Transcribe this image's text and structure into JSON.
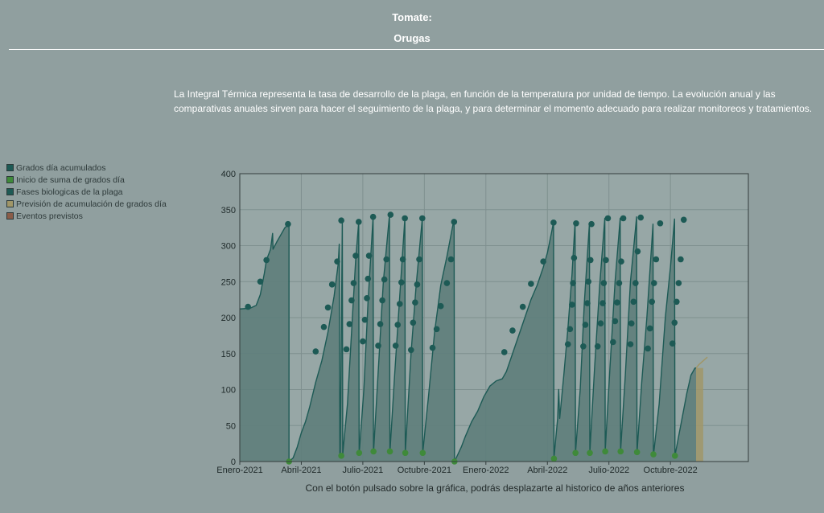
{
  "header": {
    "title": "Tomate:",
    "subtitle": "Orugas"
  },
  "description": "La Integral Térmica representa la tasa de desarrollo de la plaga, en función de la temperatura por unidad de tiempo. La evolución anual y las comparativas anuales sirven para hacer el seguimiento de la plaga, y para determinar el momento adecuado para realizar monitoreos y tratamientos.",
  "legend": [
    {
      "label": "Grados día acumulados",
      "color": "#1d5a55"
    },
    {
      "label": "Inicio de suma de grados día",
      "color": "#3f8a3a"
    },
    {
      "label": "Fases biologicas de la plaga",
      "color": "#1d5a55"
    },
    {
      "label": "Previsión de acumulación de grados día",
      "color": "#a09668"
    },
    {
      "label": "Eventos previstos",
      "color": "#8a5c48"
    }
  ],
  "footer_note": "Con el botón pulsado sobre la gráfica, podrás desplazarte al historico de años anteriores",
  "chart_data": {
    "type": "area",
    "x_unit": "months since Enero-2021",
    "xlim": [
      0,
      24.8
    ],
    "ylim": [
      0,
      400
    ],
    "y_ticks": [
      0,
      50,
      100,
      150,
      200,
      250,
      300,
      350,
      400
    ],
    "x_ticks": [
      {
        "label": "Enero-2021",
        "x": 0
      },
      {
        "label": "Abril-2021",
        "x": 3
      },
      {
        "label": "Julio-2021",
        "x": 6
      },
      {
        "label": "Octubre-2021",
        "x": 9
      },
      {
        "label": "Enero-2022",
        "x": 12
      },
      {
        "label": "Abril-2022",
        "x": 15
      },
      {
        "label": "Julio-2022",
        "x": 18
      },
      {
        "label": "Octubre-2022",
        "x": 21
      }
    ],
    "grid": true,
    "colors": {
      "area": "#5e7e7b",
      "line": "#1d5a55",
      "start": "#3f8a3a",
      "forecast": "#a09668"
    },
    "cumulative_degree_days": [
      [
        0,
        212
      ],
      [
        0.5,
        213
      ],
      [
        0.8,
        217
      ],
      [
        1.0,
        232
      ],
      [
        1.2,
        262
      ],
      [
        1.3,
        280
      ],
      [
        1.5,
        295
      ],
      [
        1.6,
        317
      ],
      [
        1.62,
        295
      ],
      [
        1.8,
        305
      ],
      [
        2.0,
        315
      ],
      [
        2.2,
        325
      ],
      [
        2.4,
        330
      ],
      [
        2.4,
        0
      ],
      [
        2.4,
        0
      ],
      [
        2.6,
        5
      ],
      [
        2.8,
        20
      ],
      [
        3.0,
        40
      ],
      [
        3.2,
        55
      ],
      [
        3.4,
        75
      ],
      [
        3.7,
        110
      ],
      [
        4.0,
        140
      ],
      [
        4.3,
        180
      ],
      [
        4.6,
        230
      ],
      [
        4.8,
        275
      ],
      [
        4.85,
        302
      ],
      [
        4.88,
        10
      ],
      [
        4.9,
        10
      ],
      [
        5.0,
        335
      ],
      [
        5.02,
        10
      ],
      [
        5.02,
        10
      ],
      [
        5.25,
        80
      ],
      [
        5.45,
        180
      ],
      [
        5.65,
        280
      ],
      [
        5.8,
        333
      ],
      [
        5.82,
        10
      ],
      [
        5.82,
        10
      ],
      [
        6.05,
        100
      ],
      [
        6.25,
        220
      ],
      [
        6.5,
        340
      ],
      [
        6.52,
        12
      ],
      [
        6.52,
        12
      ],
      [
        6.8,
        150
      ],
      [
        7.0,
        250
      ],
      [
        7.3,
        343
      ],
      [
        7.32,
        12
      ],
      [
        7.32,
        12
      ],
      [
        7.55,
        120
      ],
      [
        7.8,
        230
      ],
      [
        8.05,
        338
      ],
      [
        8.07,
        12
      ],
      [
        8.07,
        12
      ],
      [
        8.35,
        150
      ],
      [
        8.6,
        245
      ],
      [
        8.9,
        338
      ],
      [
        8.92,
        12
      ],
      [
        8.92,
        12
      ],
      [
        9.2,
        90
      ],
      [
        9.5,
        180
      ],
      [
        9.8,
        245
      ],
      [
        10.1,
        285
      ],
      [
        10.4,
        330
      ],
      [
        10.45,
        333
      ],
      [
        10.47,
        0
      ],
      [
        10.47,
        0
      ],
      [
        10.8,
        20
      ],
      [
        11.0,
        35
      ],
      [
        11.3,
        55
      ],
      [
        11.6,
        70
      ],
      [
        11.9,
        90
      ],
      [
        12.2,
        105
      ],
      [
        12.5,
        112
      ],
      [
        12.8,
        115
      ],
      [
        13.0,
        125
      ],
      [
        13.3,
        150
      ],
      [
        13.6,
        175
      ],
      [
        13.9,
        200
      ],
      [
        14.2,
        225
      ],
      [
        14.5,
        245
      ],
      [
        14.8,
        270
      ],
      [
        15.0,
        290
      ],
      [
        15.2,
        318
      ],
      [
        15.3,
        333
      ],
      [
        15.32,
        5
      ],
      [
        15.32,
        5
      ],
      [
        15.5,
        60
      ],
      [
        15.55,
        100
      ],
      [
        15.6,
        60
      ],
      [
        15.8,
        120
      ],
      [
        16.0,
        185
      ],
      [
        16.2,
        260
      ],
      [
        16.35,
        333
      ],
      [
        16.37,
        12
      ],
      [
        16.37,
        12
      ],
      [
        16.6,
        100
      ],
      [
        16.8,
        220
      ],
      [
        17.05,
        331
      ],
      [
        17.07,
        12
      ],
      [
        17.07,
        12
      ],
      [
        17.3,
        130
      ],
      [
        17.55,
        245
      ],
      [
        17.8,
        338
      ],
      [
        17.82,
        15
      ],
      [
        17.82,
        15
      ],
      [
        18.05,
        130
      ],
      [
        18.3,
        250
      ],
      [
        18.55,
        338
      ],
      [
        18.57,
        15
      ],
      [
        18.57,
        15
      ],
      [
        18.8,
        120
      ],
      [
        19.05,
        250
      ],
      [
        19.35,
        340
      ],
      [
        19.37,
        12
      ],
      [
        19.37,
        12
      ],
      [
        19.6,
        110
      ],
      [
        19.85,
        200
      ],
      [
        20.15,
        330
      ],
      [
        20.17,
        8
      ],
      [
        20.17,
        8
      ],
      [
        20.45,
        80
      ],
      [
        20.75,
        200
      ],
      [
        21.0,
        270
      ],
      [
        21.2,
        337
      ],
      [
        21.22,
        8
      ],
      [
        21.22,
        8
      ],
      [
        21.5,
        50
      ],
      [
        21.8,
        95
      ],
      [
        22.0,
        120
      ],
      [
        22.2,
        130
      ],
      [
        22.25,
        130
      ]
    ],
    "forecast_degree_days": [
      [
        22.25,
        130
      ],
      [
        22.4,
        135
      ],
      [
        22.6,
        140
      ],
      [
        22.8,
        145
      ]
    ],
    "forecast_band": [
      22.25,
      22.6
    ],
    "start_events": [
      [
        2.4,
        0
      ],
      [
        4.95,
        8
      ],
      [
        5.82,
        12
      ],
      [
        6.52,
        14
      ],
      [
        7.32,
        14
      ],
      [
        8.07,
        12
      ],
      [
        8.92,
        12
      ],
      [
        10.47,
        0
      ],
      [
        15.32,
        4
      ],
      [
        16.37,
        12
      ],
      [
        17.07,
        12
      ],
      [
        17.82,
        14
      ],
      [
        18.57,
        14
      ],
      [
        19.37,
        13
      ],
      [
        20.17,
        10
      ],
      [
        21.22,
        8
      ]
    ],
    "phase_events": [
      [
        0.4,
        215
      ],
      [
        1.0,
        250
      ],
      [
        1.3,
        280
      ],
      [
        2.35,
        330
      ],
      [
        3.7,
        153
      ],
      [
        4.1,
        187
      ],
      [
        4.3,
        214
      ],
      [
        4.5,
        246
      ],
      [
        4.75,
        278
      ],
      [
        4.95,
        335
      ],
      [
        5.2,
        156
      ],
      [
        5.35,
        191
      ],
      [
        5.45,
        224
      ],
      [
        5.55,
        248
      ],
      [
        5.65,
        286
      ],
      [
        5.8,
        333
      ],
      [
        6.0,
        167
      ],
      [
        6.1,
        197
      ],
      [
        6.2,
        227
      ],
      [
        6.25,
        254
      ],
      [
        6.3,
        286
      ],
      [
        6.5,
        340
      ],
      [
        6.75,
        161
      ],
      [
        6.85,
        191
      ],
      [
        6.95,
        224
      ],
      [
        7.05,
        253
      ],
      [
        7.15,
        281
      ],
      [
        7.35,
        343
      ],
      [
        7.6,
        161
      ],
      [
        7.7,
        190
      ],
      [
        7.8,
        219
      ],
      [
        7.88,
        249
      ],
      [
        7.95,
        281
      ],
      [
        8.05,
        338
      ],
      [
        8.35,
        155
      ],
      [
        8.45,
        193
      ],
      [
        8.55,
        221
      ],
      [
        8.65,
        246
      ],
      [
        8.75,
        281
      ],
      [
        8.9,
        338
      ],
      [
        9.4,
        158
      ],
      [
        9.6,
        184
      ],
      [
        9.8,
        216
      ],
      [
        10.1,
        248
      ],
      [
        10.3,
        281
      ],
      [
        10.45,
        333
      ],
      [
        12.9,
        152
      ],
      [
        13.3,
        182
      ],
      [
        13.8,
        215
      ],
      [
        14.2,
        247
      ],
      [
        14.8,
        278
      ],
      [
        15.3,
        332
      ],
      [
        16.0,
        163
      ],
      [
        16.1,
        184
      ],
      [
        16.2,
        218
      ],
      [
        16.25,
        248
      ],
      [
        16.3,
        283
      ],
      [
        16.4,
        331
      ],
      [
        16.75,
        160
      ],
      [
        16.85,
        190
      ],
      [
        16.95,
        220
      ],
      [
        17.0,
        250
      ],
      [
        17.1,
        280
      ],
      [
        17.15,
        330
      ],
      [
        17.45,
        160
      ],
      [
        17.6,
        192
      ],
      [
        17.7,
        220
      ],
      [
        17.75,
        248
      ],
      [
        17.85,
        280
      ],
      [
        17.95,
        338
      ],
      [
        18.2,
        166
      ],
      [
        18.3,
        195
      ],
      [
        18.4,
        221
      ],
      [
        18.5,
        248
      ],
      [
        18.6,
        278
      ],
      [
        18.7,
        338
      ],
      [
        19.05,
        163
      ],
      [
        19.1,
        192
      ],
      [
        19.2,
        222
      ],
      [
        19.3,
        248
      ],
      [
        19.4,
        292
      ],
      [
        19.55,
        339
      ],
      [
        19.9,
        157
      ],
      [
        20.0,
        185
      ],
      [
        20.1,
        222
      ],
      [
        20.2,
        248
      ],
      [
        20.3,
        281
      ],
      [
        20.5,
        331
      ],
      [
        21.1,
        164
      ],
      [
        21.2,
        193
      ],
      [
        21.3,
        222
      ],
      [
        21.4,
        248
      ],
      [
        21.5,
        281
      ],
      [
        21.65,
        336
      ]
    ]
  }
}
